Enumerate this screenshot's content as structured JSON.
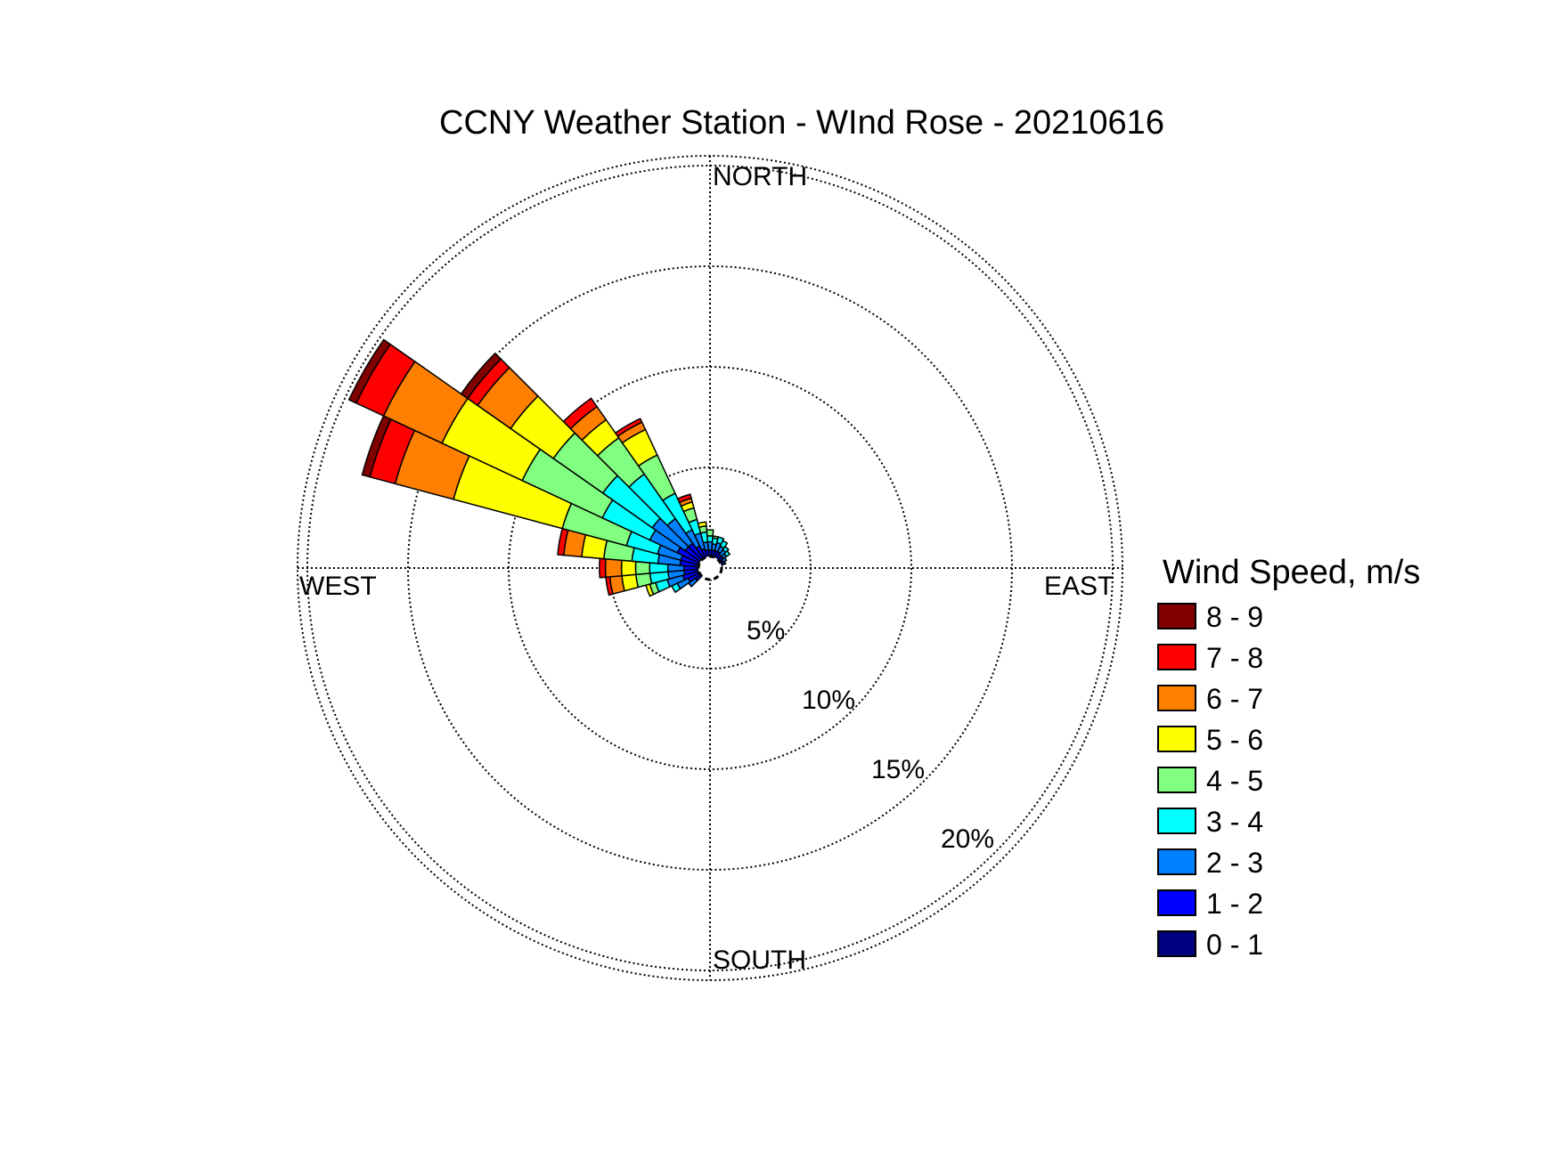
{
  "chart_data": {
    "type": "wind-rose",
    "title": "CCNY Weather Station - WInd Rose - 20210616",
    "directions": {
      "north": "NORTH",
      "east": "EAST",
      "south": "SOUTH",
      "west": "WEST"
    },
    "radial_ticks": [
      {
        "value": 5,
        "label": "5%"
      },
      {
        "value": 10,
        "label": "10%"
      },
      {
        "value": 15,
        "label": "15%"
      },
      {
        "value": 20,
        "label": "20%"
      }
    ],
    "rmax_percent": 20.5,
    "grid": true,
    "sector_width_deg": 10,
    "legend": {
      "title": "Wind Speed, m/s",
      "placement": "right",
      "bins": [
        {
          "label": "0 - 1",
          "color": "#000080"
        },
        {
          "label": "1 - 2",
          "color": "#0000ff"
        },
        {
          "label": "2 - 3",
          "color": "#0080ff"
        },
        {
          "label": "3 - 4",
          "color": "#00ffff"
        },
        {
          "label": "4 - 5",
          "color": "#80ff80"
        },
        {
          "label": "5 - 6",
          "color": "#ffff00"
        },
        {
          "label": "6 - 7",
          "color": "#ff8000"
        },
        {
          "label": "7 - 8",
          "color": "#ff0000"
        },
        {
          "label": "8 - 9",
          "color": "#800000"
        }
      ]
    },
    "sectors": [
      {
        "dir": 10,
        "cumulative": [
          0.5,
          0.9,
          1.2,
          1.5,
          1.6
        ]
      },
      {
        "dir": 20,
        "cumulative": [
          0.5,
          0.9,
          1.3,
          1.6
        ]
      },
      {
        "dir": 30,
        "cumulative": [
          0.5,
          0.9,
          1.2,
          1.5
        ]
      },
      {
        "dir": 40,
        "cumulative": [
          0.5,
          0.8,
          1.1,
          1.3
        ]
      },
      {
        "dir": 50,
        "cumulative": [
          0.5,
          0.8,
          1.0,
          1.2
        ]
      },
      {
        "dir": 60,
        "cumulative": [
          0.5,
          0.7,
          0.9
        ]
      },
      {
        "dir": 70,
        "cumulative": [
          0.5,
          0.7,
          0.8
        ]
      },
      {
        "dir": 80,
        "cumulative": [
          0.5,
          0.6
        ]
      },
      {
        "dir": 90,
        "cumulative": [
          0.4,
          0.5
        ]
      },
      {
        "dir": 180,
        "cumulative": [
          0.4,
          0.6
        ]
      },
      {
        "dir": 190,
        "cumulative": [
          0.4,
          0.6
        ]
      },
      {
        "dir": 200,
        "cumulative": [
          0.4,
          0.5
        ]
      },
      {
        "dir": 230,
        "cumulative": [
          0.5,
          0.9,
          1.3
        ]
      },
      {
        "dir": 240,
        "cumulative": [
          0.6,
          1.2,
          1.8,
          2.1
        ]
      },
      {
        "dir": 250,
        "cumulative": [
          0.6,
          1.4,
          2.2,
          2.8,
          3.1,
          3.3
        ]
      },
      {
        "dir": 260,
        "cumulative": [
          0.6,
          1.3,
          2.1,
          3.0,
          3.7,
          4.4,
          5.0,
          5.2
        ]
      },
      {
        "dir": 270,
        "cumulative": [
          0.6,
          1.3,
          2.1,
          3.0,
          3.7,
          4.4,
          5.2,
          5.5
        ]
      },
      {
        "dir": 280,
        "cumulative": [
          0.6,
          1.5,
          2.6,
          3.9,
          5.3,
          6.4,
          7.3,
          7.6
        ]
      },
      {
        "dir": 290,
        "cumulative": [
          0.6,
          1.5,
          2.7,
          4.3,
          7.6,
          13.2,
          16.2,
          17.5,
          17.9
        ]
      },
      {
        "dir": 300,
        "cumulative": [
          0.6,
          1.8,
          3.3,
          5.9,
          10.3,
          14.7,
          17.9,
          19.4,
          19.8
        ]
      },
      {
        "dir": 310,
        "cumulative": [
          0.6,
          1.5,
          3.5,
          6.5,
          9.5,
          12.1,
          14.1,
          14.7,
          15.1
        ]
      },
      {
        "dir": 320,
        "cumulative": [
          0.6,
          1.5,
          3.0,
          5.7,
          7.9,
          9.0,
          9.8,
          10.3
        ]
      },
      {
        "dir": 330,
        "cumulative": [
          0.5,
          1.2,
          2.1,
          4.1,
          6.2,
          7.6,
          8.0,
          8.2
        ]
      },
      {
        "dir": 340,
        "cumulative": [
          0.5,
          1.0,
          1.8,
          2.5,
          3.1,
          3.4,
          3.6,
          3.8
        ]
      },
      {
        "dir": 350,
        "cumulative": [
          0.5,
          0.9,
          1.3,
          1.8,
          2.1,
          2.3
        ]
      },
      {
        "dir": 0,
        "cumulative": [
          0.5,
          0.9,
          1.3,
          1.6,
          1.9
        ]
      }
    ]
  }
}
